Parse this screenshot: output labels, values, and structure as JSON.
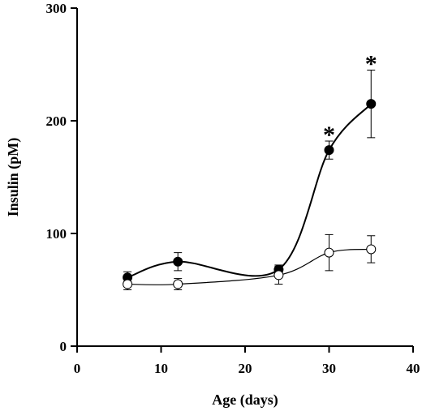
{
  "chart_data": {
    "type": "line",
    "title": "",
    "xlabel": "Age (days)",
    "ylabel": "Insulin (pM)",
    "xlim": [
      0,
      40
    ],
    "ylim": [
      0,
      300
    ],
    "xticks": [
      0,
      10,
      20,
      30,
      40
    ],
    "yticks": [
      0,
      100,
      200,
      300
    ],
    "grid": false,
    "series": [
      {
        "marker": "filled-circle",
        "x": [
          6,
          12,
          24,
          30,
          35
        ],
        "y": [
          61,
          75,
          68,
          174,
          215
        ],
        "err": [
          5,
          8,
          4,
          8,
          30
        ]
      },
      {
        "marker": "open-circle",
        "x": [
          6,
          12,
          24,
          30,
          35
        ],
        "y": [
          55,
          55,
          63,
          83,
          86
        ],
        "err": [
          5,
          5,
          8,
          16,
          12
        ]
      }
    ],
    "annotations": [
      {
        "text": "*",
        "x": 30,
        "y": 174
      },
      {
        "text": "*",
        "x": 35,
        "y": 215
      }
    ]
  }
}
